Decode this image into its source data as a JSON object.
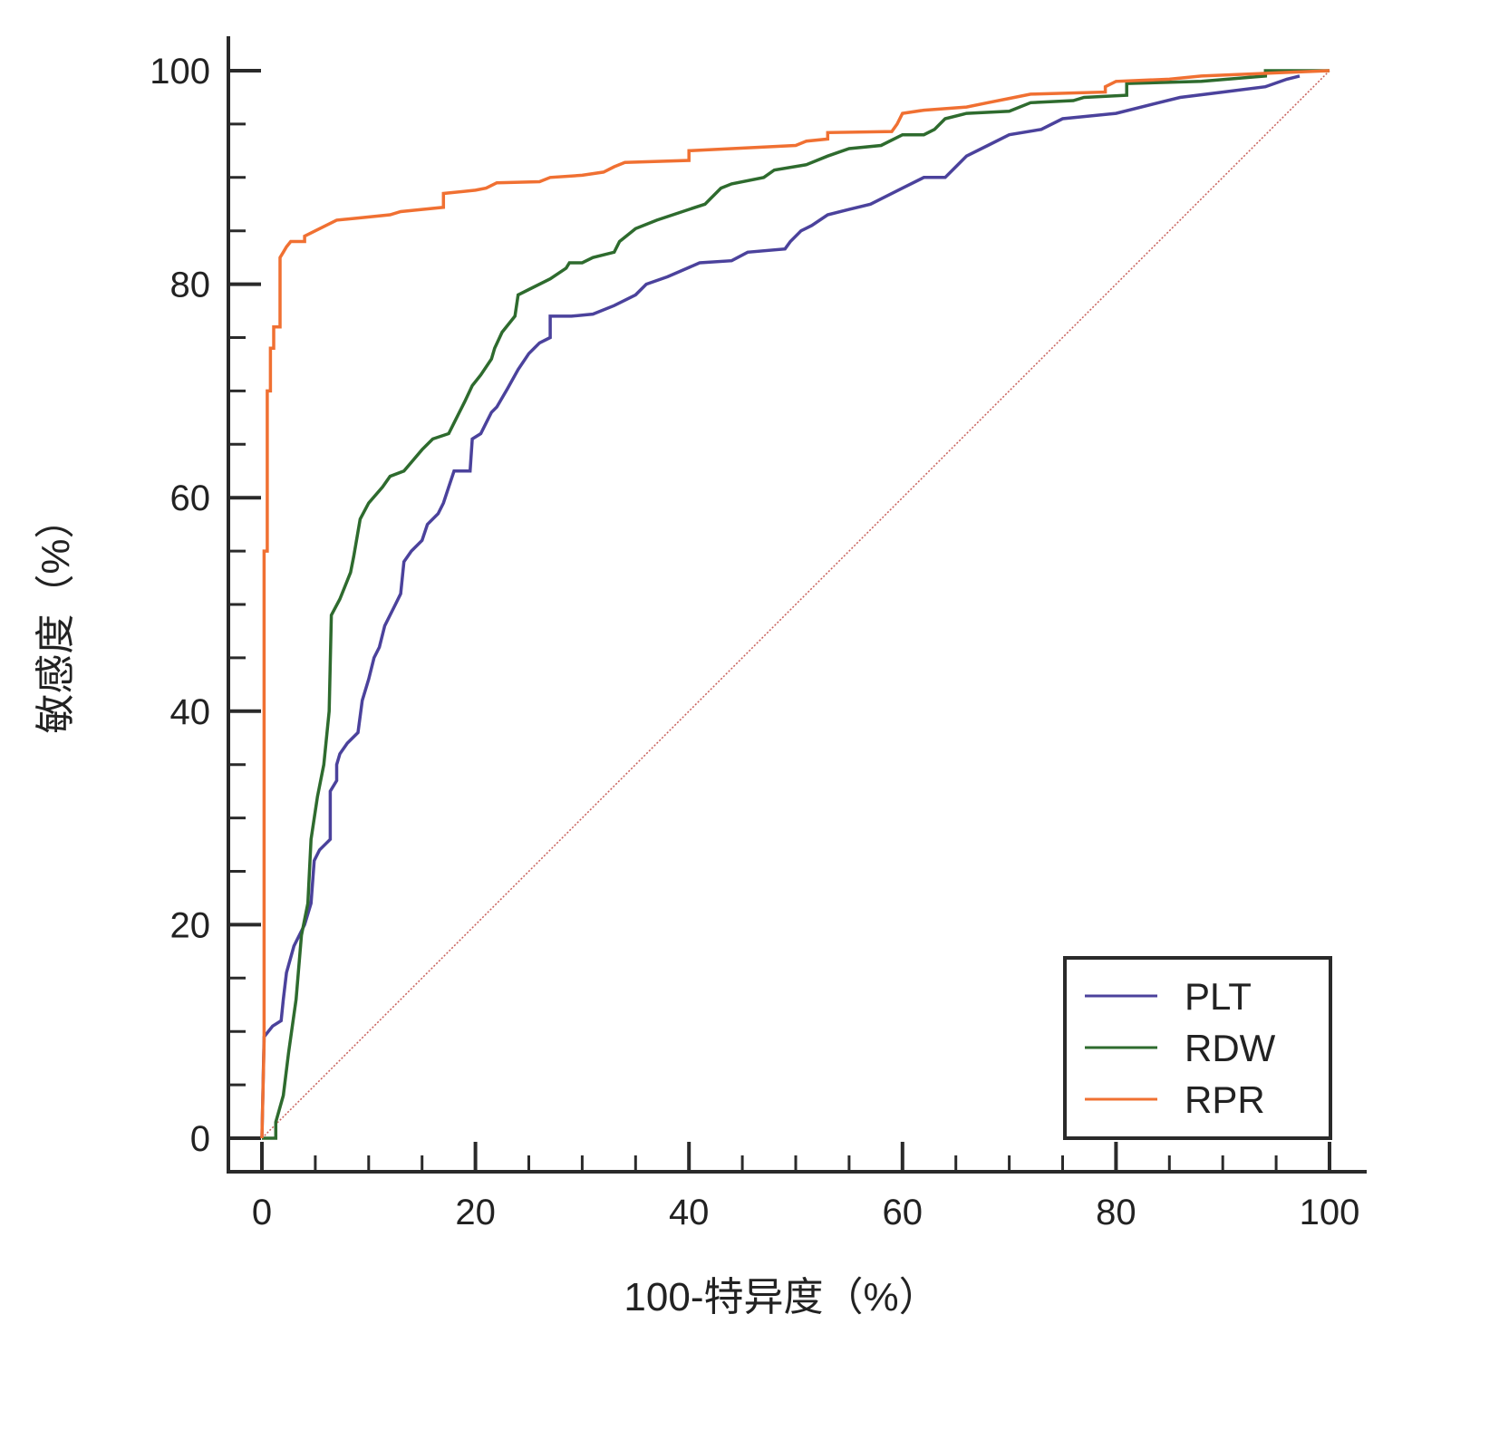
{
  "chart_data": {
    "type": "line",
    "title": "",
    "xlabel": "100-特异度（%）",
    "ylabel": "敏感度（%）",
    "xlim": [
      0,
      100
    ],
    "ylim": [
      0,
      100
    ],
    "xticks": [
      "0",
      "20",
      "40",
      "60",
      "80",
      "100"
    ],
    "yticks": [
      "0",
      "20",
      "40",
      "60",
      "80",
      "100"
    ],
    "grid": false,
    "legend_position": "bottom-right",
    "reference_line": {
      "x": [
        0,
        100
      ],
      "y": [
        0,
        100
      ],
      "style": "dotted",
      "color": "#c8605a"
    },
    "series": [
      {
        "name": "PLT",
        "color": "#4b429c",
        "points": [
          [
            0,
            0
          ],
          [
            0.2,
            9.5
          ],
          [
            1,
            10.5
          ],
          [
            1.8,
            11
          ],
          [
            2,
            13
          ],
          [
            2.3,
            15.5
          ],
          [
            3,
            18
          ],
          [
            4,
            20
          ],
          [
            4.6,
            22
          ],
          [
            4.9,
            26
          ],
          [
            5.4,
            27
          ],
          [
            6.4,
            28
          ],
          [
            6.4,
            32.5
          ],
          [
            7,
            33.5
          ],
          [
            7,
            35
          ],
          [
            7.3,
            36
          ],
          [
            8,
            37
          ],
          [
            9,
            38
          ],
          [
            9.4,
            41
          ],
          [
            10,
            43
          ],
          [
            10.5,
            45
          ],
          [
            11,
            46
          ],
          [
            11.5,
            48
          ],
          [
            12.5,
            50
          ],
          [
            13,
            51
          ],
          [
            13.3,
            54
          ],
          [
            14,
            55
          ],
          [
            15,
            56
          ],
          [
            15.5,
            57.5
          ],
          [
            16.5,
            58.5
          ],
          [
            17,
            59.5
          ],
          [
            17.5,
            61
          ],
          [
            18,
            62.5
          ],
          [
            19.5,
            62.5
          ],
          [
            19.7,
            65.5
          ],
          [
            20.5,
            66
          ],
          [
            21,
            67
          ],
          [
            21.5,
            68
          ],
          [
            22,
            68.5
          ],
          [
            23,
            70.2
          ],
          [
            24,
            72
          ],
          [
            25,
            73.5
          ],
          [
            26,
            74.5
          ],
          [
            27,
            75
          ],
          [
            27,
            77
          ],
          [
            29,
            77
          ],
          [
            31,
            77.2
          ],
          [
            33,
            78
          ],
          [
            35,
            79
          ],
          [
            36,
            80
          ],
          [
            38,
            80.7
          ],
          [
            41,
            82
          ],
          [
            44,
            82.2
          ],
          [
            45.5,
            83
          ],
          [
            49,
            83.3
          ],
          [
            49.5,
            84
          ],
          [
            50.5,
            85
          ],
          [
            51.5,
            85.5
          ],
          [
            53,
            86.5
          ],
          [
            55,
            87
          ],
          [
            57,
            87.5
          ],
          [
            58,
            88
          ],
          [
            60,
            89
          ],
          [
            62,
            90
          ],
          [
            64,
            90
          ],
          [
            65,
            91
          ],
          [
            66,
            92
          ],
          [
            68,
            93
          ],
          [
            70,
            94
          ],
          [
            73,
            94.5
          ],
          [
            75,
            95.5
          ],
          [
            80,
            96
          ],
          [
            84,
            97
          ],
          [
            86,
            97.5
          ],
          [
            90,
            98
          ],
          [
            94,
            98.5
          ],
          [
            96,
            99.2
          ],
          [
            97.2,
            99.5
          ]
        ]
      },
      {
        "name": "RDW",
        "color": "#2e6b2e",
        "points": [
          [
            0,
            0
          ],
          [
            1.3,
            0
          ],
          [
            1.3,
            1.5
          ],
          [
            2,
            4
          ],
          [
            2.5,
            8
          ],
          [
            3.2,
            13
          ],
          [
            3.7,
            19
          ],
          [
            4.3,
            22
          ],
          [
            4.6,
            28
          ],
          [
            5.2,
            32
          ],
          [
            5.8,
            35
          ],
          [
            6.3,
            40
          ],
          [
            6.5,
            49
          ],
          [
            7.3,
            50.5
          ],
          [
            8.3,
            53
          ],
          [
            8.6,
            54.5
          ],
          [
            9.2,
            58
          ],
          [
            10,
            59.5
          ],
          [
            11.3,
            61
          ],
          [
            12,
            62
          ],
          [
            13.3,
            62.5
          ],
          [
            15,
            64.5
          ],
          [
            16,
            65.5
          ],
          [
            17.5,
            66
          ],
          [
            18,
            67
          ],
          [
            19,
            69
          ],
          [
            19.7,
            70.5
          ],
          [
            20.5,
            71.5
          ],
          [
            21.5,
            73
          ],
          [
            21.8,
            74
          ],
          [
            22.5,
            75.5
          ],
          [
            23.7,
            77
          ],
          [
            24,
            79
          ],
          [
            25,
            79.5
          ],
          [
            27,
            80.5
          ],
          [
            28.5,
            81.5
          ],
          [
            28.8,
            82
          ],
          [
            30,
            82
          ],
          [
            31,
            82.5
          ],
          [
            33,
            83
          ],
          [
            33.5,
            84
          ],
          [
            35,
            85.2
          ],
          [
            37,
            86
          ],
          [
            40,
            87
          ],
          [
            41.5,
            87.5
          ],
          [
            42,
            88
          ],
          [
            43,
            89
          ],
          [
            44,
            89.4
          ],
          [
            47,
            90
          ],
          [
            48,
            90.7
          ],
          [
            51,
            91.2
          ],
          [
            53,
            92
          ],
          [
            55,
            92.7
          ],
          [
            58,
            93
          ],
          [
            60,
            94
          ],
          [
            62,
            94
          ],
          [
            63,
            94.5
          ],
          [
            64,
            95.5
          ],
          [
            66,
            96
          ],
          [
            70,
            96.2
          ],
          [
            72,
            97
          ],
          [
            76,
            97.2
          ],
          [
            77,
            97.5
          ],
          [
            81,
            97.7
          ],
          [
            81,
            98.8
          ],
          [
            88,
            99
          ],
          [
            94,
            99.5
          ],
          [
            94,
            100
          ],
          [
            100,
            100
          ]
        ]
      },
      {
        "name": "RPR",
        "color": "#f07032",
        "points": [
          [
            0,
            0
          ],
          [
            0.2,
            9
          ],
          [
            0.2,
            55
          ],
          [
            0.5,
            55
          ],
          [
            0.5,
            70
          ],
          [
            0.8,
            70
          ],
          [
            0.8,
            74
          ],
          [
            1.1,
            74
          ],
          [
            1.1,
            76
          ],
          [
            1.7,
            76
          ],
          [
            1.7,
            82.5
          ],
          [
            2,
            83
          ],
          [
            2.3,
            83.5
          ],
          [
            2.7,
            84
          ],
          [
            4,
            84
          ],
          [
            4,
            84.5
          ],
          [
            5,
            85
          ],
          [
            6,
            85.5
          ],
          [
            7,
            86
          ],
          [
            9,
            86.2
          ],
          [
            12,
            86.5
          ],
          [
            13,
            86.8
          ],
          [
            15,
            87
          ],
          [
            17,
            87.2
          ],
          [
            17,
            88.5
          ],
          [
            20,
            88.8
          ],
          [
            21,
            89
          ],
          [
            22,
            89.5
          ],
          [
            26,
            89.6
          ],
          [
            27,
            90
          ],
          [
            30,
            90.2
          ],
          [
            32,
            90.5
          ],
          [
            33,
            91
          ],
          [
            34,
            91.4
          ],
          [
            40,
            91.6
          ],
          [
            40,
            92.5
          ],
          [
            50,
            93
          ],
          [
            51,
            93.4
          ],
          [
            53,
            93.6
          ],
          [
            53,
            94.2
          ],
          [
            59,
            94.3
          ],
          [
            59.5,
            95
          ],
          [
            60,
            96
          ],
          [
            62,
            96.3
          ],
          [
            66,
            96.6
          ],
          [
            68,
            97
          ],
          [
            70,
            97.4
          ],
          [
            72,
            97.8
          ],
          [
            79,
            98
          ],
          [
            79,
            98.5
          ],
          [
            80,
            99
          ],
          [
            85,
            99.2
          ],
          [
            88,
            99.5
          ],
          [
            95,
            99.8
          ],
          [
            100,
            100
          ]
        ]
      }
    ]
  }
}
